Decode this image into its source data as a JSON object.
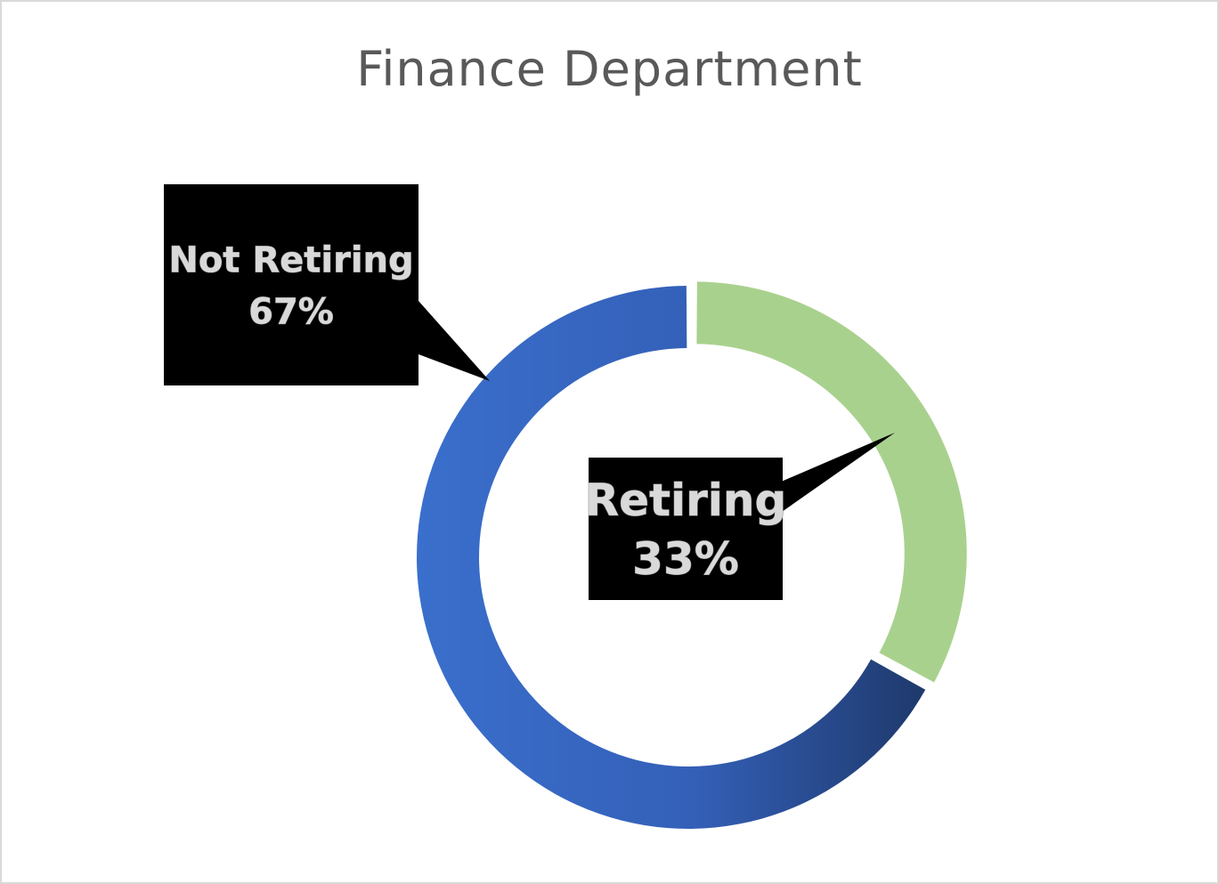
{
  "chart_data": {
    "type": "pie",
    "title": "Finance Department",
    "slices": [
      {
        "label": "Retiring",
        "value": 33,
        "value_label": "33%",
        "color": "#a9d18e"
      },
      {
        "label": "Not Retiring",
        "value": 67,
        "value_label": "67%",
        "color": "#3a6bc4"
      }
    ],
    "donut": true,
    "exploded_slice": "Retiring",
    "data_label_style": "callout boxes (black fill, light outlined text)"
  }
}
